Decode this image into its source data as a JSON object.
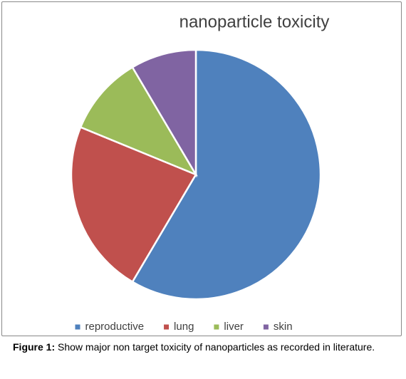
{
  "chart_data": {
    "type": "pie",
    "title": "nanoparticle toxicity",
    "categories": [
      "reproductive",
      "lung",
      "liver",
      "skin"
    ],
    "values": [
      58.5,
      22.7,
      10.3,
      8.5
    ],
    "colors": [
      "#4f81bd",
      "#c0504d",
      "#9bbb59",
      "#8064a2"
    ],
    "legend": "bottom"
  },
  "caption": {
    "label": "Figure 1:",
    "text": "Show major non target toxicity of nanoparticles as recorded in literature."
  }
}
